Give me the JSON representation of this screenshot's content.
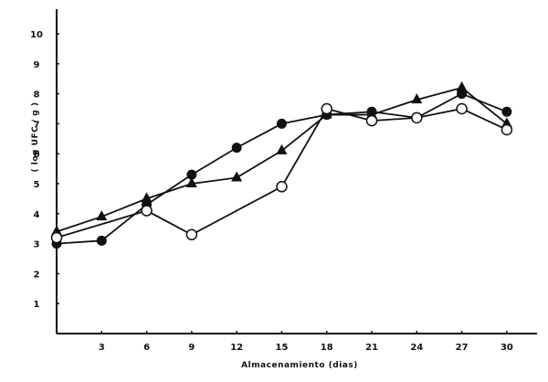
{
  "chart_data": {
    "type": "line",
    "title": "",
    "xlabel": "Almacenamiento (dias)",
    "ylabel": "( log UFC / g )",
    "xlim": [
      0,
      32
    ],
    "ylim": [
      0,
      11
    ],
    "x_ticks": [
      3,
      6,
      9,
      12,
      15,
      18,
      21,
      24,
      27,
      30
    ],
    "y_ticks": [
      1,
      2,
      3,
      4,
      5,
      6,
      7,
      8,
      9,
      10
    ],
    "grid": false,
    "legend": null,
    "series": [
      {
        "name": "filled-circle",
        "marker": "filled-circle",
        "x": [
          0,
          3,
          6,
          9,
          12,
          15,
          18,
          21,
          24,
          27,
          30
        ],
        "values": [
          3.0,
          3.1,
          4.3,
          5.3,
          6.2,
          7.0,
          7.3,
          7.4,
          7.2,
          8.0,
          7.4
        ]
      },
      {
        "name": "filled-triangle",
        "marker": "filled-triangle",
        "x": [
          0,
          3,
          6,
          9,
          12,
          15,
          18,
          21,
          24,
          27,
          30
        ],
        "values": [
          3.4,
          3.9,
          4.5,
          5.0,
          5.2,
          6.1,
          7.3,
          7.3,
          7.8,
          8.2,
          7.0
        ]
      },
      {
        "name": "open-circle",
        "marker": "open-circle",
        "x": [
          0,
          6,
          9,
          15,
          18,
          21,
          24,
          27,
          30
        ],
        "values": [
          3.2,
          4.1,
          3.3,
          4.9,
          7.5,
          7.1,
          7.2,
          7.5,
          6.8
        ]
      }
    ]
  },
  "colors": {
    "ink": "#111111",
    "background": "#ffffff"
  }
}
